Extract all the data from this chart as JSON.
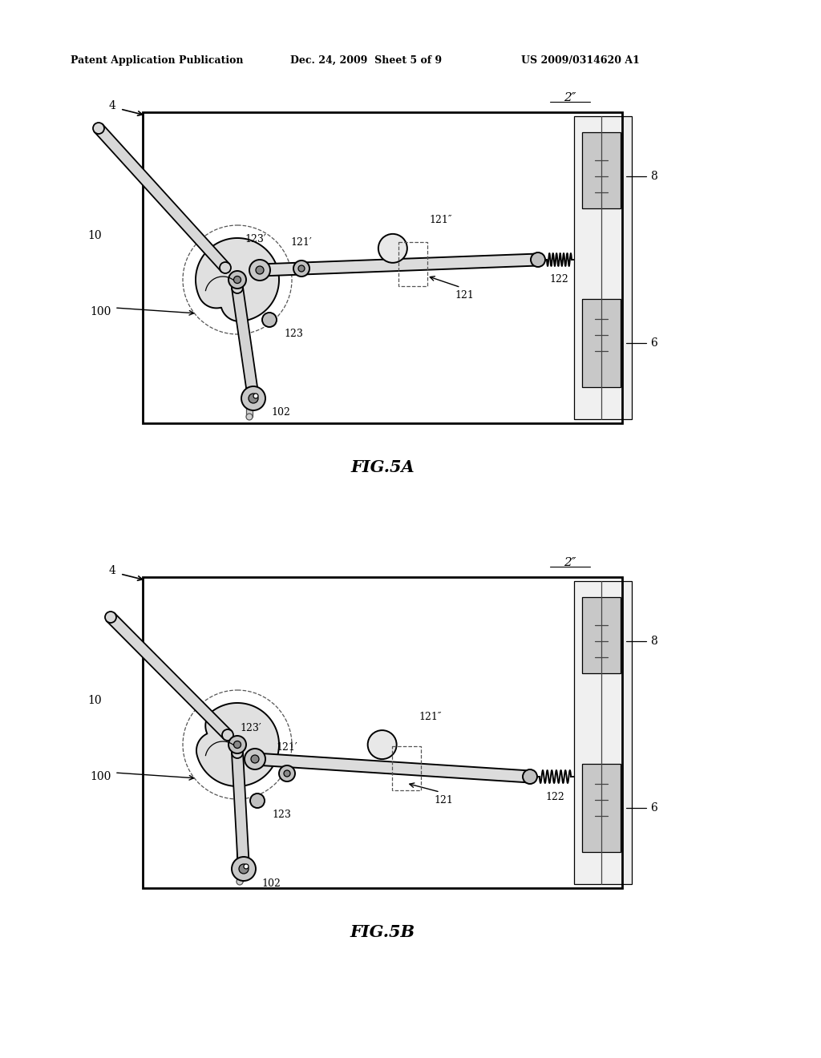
{
  "header_left": "Patent Application Publication",
  "header_mid": "Dec. 24, 2009  Sheet 5 of 9",
  "header_right": "US 2009/0314620 A1",
  "fig5a_caption": "FIG.5A",
  "fig5b_caption": "FIG.5B",
  "bg_color": "#ffffff",
  "line_color": "#000000"
}
